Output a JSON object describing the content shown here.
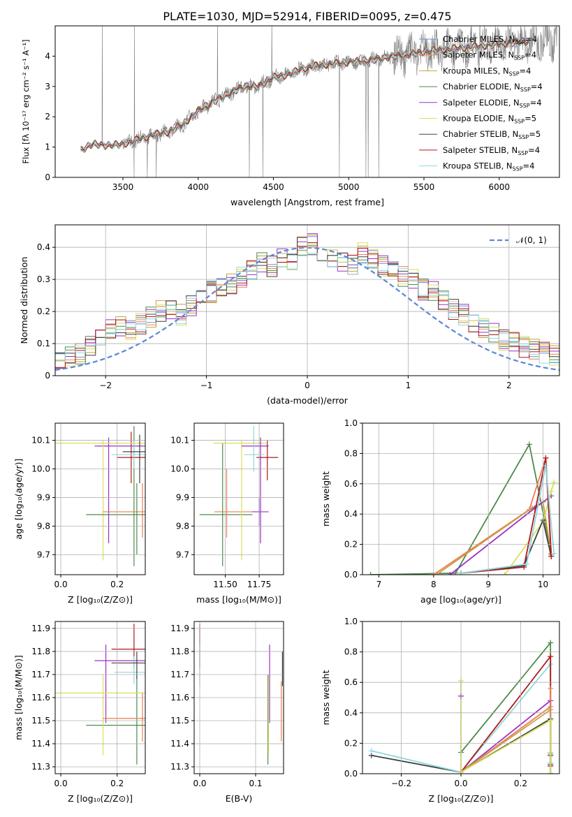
{
  "figure_title": "PLATE=1030, MJD=52914, FIBERID=0095, z=0.475",
  "series_colors": [
    "#6f8fd8",
    "#ee7b52",
    "#c8a040",
    "#4d8a4d",
    "#9b30c8",
    "#d8e05a",
    "#404040",
    "#b01818",
    "#8fd8e0"
  ],
  "chart_data": [
    {
      "id": "spectrum",
      "type": "line",
      "xlabel": "wavelength [Angstrom, rest frame]",
      "ylabel": "Flux [fλ 10⁻¹⁷ erg cm⁻² s⁻¹ A⁻¹]",
      "xlim": [
        3050,
        6400
      ],
      "ylim": [
        0,
        5
      ],
      "xticks": [
        3500,
        4000,
        4500,
        5000,
        5500,
        6000
      ],
      "yticks": [
        0,
        1,
        2,
        3,
        4
      ],
      "legend_position": "top-right",
      "legend": [
        "Chabrier MILES, N_SSP=4",
        "Salpeter MILES, N_SSP=4",
        "Kroupa MILES, N_SSP=4",
        "Chabrier ELODIE, N_SSP=4",
        "Salpeter ELODIE, N_SSP=4",
        "Kroupa ELODIE, N_SSP=5",
        "Chabrier STELIB, N_SSP=5",
        "Salpeter STELIB, N_SSP=4",
        "Kroupa STELIB, N_SSP=4"
      ],
      "model_continuum": {
        "x": [
          3200,
          3220,
          3300,
          3400,
          3500,
          3600,
          3700,
          3800,
          3900,
          4000,
          4100,
          4200,
          4300,
          4400,
          4500,
          4600,
          4700,
          4800,
          4900,
          5000,
          5100,
          5200,
          5300,
          5400,
          5500,
          5600,
          5700,
          5800,
          5900,
          6000,
          6100,
          6200
        ],
        "y": [
          0.0,
          0.9,
          1.1,
          1.05,
          1.1,
          1.25,
          1.4,
          1.5,
          1.75,
          2.2,
          2.5,
          2.75,
          3.0,
          3.0,
          3.3,
          3.4,
          3.6,
          3.7,
          3.75,
          3.8,
          3.85,
          3.9,
          4.0,
          4.05,
          4.15,
          4.2,
          4.25,
          4.3,
          4.35,
          4.4,
          4.45,
          4.5
        ]
      }
    },
    {
      "id": "residual_histogram",
      "type": "line",
      "xlabel": "(data-model)/error",
      "ylabel": "Normed distribution",
      "xlim": [
        -2.5,
        2.5
      ],
      "ylim": [
        0,
        0.47
      ],
      "xticks": [
        -2,
        -1,
        0,
        1,
        2
      ],
      "yticks": [
        0.0,
        0.1,
        0.2,
        0.3,
        0.4
      ],
      "legend_position": "top-right",
      "legend": [
        "𝒩(0, 1)"
      ],
      "reference_curve": "standard normal pdf",
      "histogram_bin_width": 0.1,
      "histogram_base": [
        0.02,
        0.03,
        0.03,
        0.04,
        0.04,
        0.05,
        0.06,
        0.07,
        0.09,
        0.13,
        0.14,
        0.15,
        0.14,
        0.16,
        0.18,
        0.2,
        0.21,
        0.19,
        0.22,
        0.24,
        0.26,
        0.28,
        0.29,
        0.31,
        0.33,
        0.35,
        0.34,
        0.37,
        0.36,
        0.4,
        0.41,
        0.39,
        0.37,
        0.36,
        0.35,
        0.38,
        0.37,
        0.34,
        0.33,
        0.31,
        0.3,
        0.27,
        0.26,
        0.24,
        0.21,
        0.19,
        0.17,
        0.15,
        0.13,
        0.11,
        0.1,
        0.09,
        0.08,
        0.07,
        0.06,
        0.05,
        0.05,
        0.04,
        0.04,
        0.04
      ]
    },
    {
      "id": "age_vs_Z",
      "type": "scatter",
      "xlabel": "Z [log₁₀(Z/Z⊙)]",
      "ylabel": "age  [log₁₀(age/yr)]",
      "xlim": [
        -0.02,
        0.3
      ],
      "ylim": [
        9.63,
        10.16
      ],
      "xticks": [
        0.0,
        0.2
      ],
      "yticks": [
        9.7,
        9.8,
        9.9,
        10.0,
        10.1
      ],
      "errorbars": [
        {
          "x": 0.26,
          "y": 10.06,
          "xlo": 0.22,
          "xhi": 0.3,
          "ylo": 9.66,
          "yhi": 10.15,
          "c": 3
        },
        {
          "x": 0.25,
          "y": 10.04,
          "xlo": 0.2,
          "xhi": 0.3,
          "ylo": 9.95,
          "yhi": 10.13,
          "c": 7
        },
        {
          "x": 0.17,
          "y": 10.08,
          "xlo": 0.12,
          "xhi": 0.3,
          "ylo": 9.74,
          "yhi": 10.11,
          "c": 4
        },
        {
          "x": 0.15,
          "y": 10.09,
          "xlo": -0.02,
          "xhi": 0.3,
          "ylo": 9.68,
          "yhi": 10.1,
          "c": 5
        },
        {
          "x": 0.26,
          "y": 10.05,
          "xlo": 0.18,
          "xhi": 0.3,
          "ylo": 10.0,
          "yhi": 10.1,
          "c": 8
        },
        {
          "x": 0.29,
          "y": 9.85,
          "xlo": 0.15,
          "xhi": 0.3,
          "ylo": 9.76,
          "yhi": 9.95,
          "c": 1
        },
        {
          "x": 0.27,
          "y": 9.84,
          "xlo": 0.09,
          "xhi": 0.3,
          "ylo": 9.7,
          "yhi": 9.95,
          "c": 3
        },
        {
          "x": 0.28,
          "y": 10.06,
          "xlo": 0.22,
          "xhi": 0.3,
          "ylo": 9.95,
          "yhi": 10.12,
          "c": 6
        }
      ]
    },
    {
      "id": "age_vs_mass",
      "type": "scatter",
      "xlabel": "mass [log₁₀(M/M⊙)]",
      "ylabel": "",
      "xlim": [
        11.27,
        11.93
      ],
      "ylim": [
        9.63,
        10.16
      ],
      "xticks": [
        11.5,
        11.75
      ],
      "yticks": [
        9.7,
        9.8,
        9.9,
        10.0,
        10.1
      ],
      "errorbars": [
        {
          "x": 11.48,
          "y": 9.84,
          "xlo": 11.31,
          "xhi": 11.7,
          "ylo": 9.66,
          "yhi": 10.09,
          "c": 3
        },
        {
          "x": 11.51,
          "y": 9.85,
          "xlo": 11.42,
          "xhi": 11.72,
          "ylo": 9.76,
          "yhi": 10.0,
          "c": 1
        },
        {
          "x": 11.62,
          "y": 10.09,
          "xlo": 11.41,
          "xhi": 11.8,
          "ylo": 9.68,
          "yhi": 10.1,
          "c": 5
        },
        {
          "x": 11.76,
          "y": 10.08,
          "xlo": 11.62,
          "xhi": 11.82,
          "ylo": 9.74,
          "yhi": 10.11,
          "c": 4
        },
        {
          "x": 11.81,
          "y": 10.04,
          "xlo": 11.73,
          "xhi": 11.89,
          "ylo": 9.96,
          "yhi": 10.1,
          "c": 7
        },
        {
          "x": 11.71,
          "y": 10.05,
          "xlo": 11.64,
          "xhi": 11.79,
          "ylo": 9.99,
          "yhi": 10.15,
          "c": 8
        },
        {
          "x": 11.75,
          "y": 9.85,
          "xlo": 11.7,
          "xhi": 11.82,
          "ylo": 9.8,
          "yhi": 9.9,
          "c": 4
        }
      ]
    },
    {
      "id": "mass_weight_vs_age",
      "type": "line",
      "xlabel": "age  [log₁₀(age/yr)]",
      "ylabel": "mass weight",
      "xlim": [
        6.7,
        10.3
      ],
      "ylim": [
        0,
        1.0
      ],
      "xticks": [
        7,
        8,
        9,
        10
      ],
      "yticks": [
        0.0,
        0.2,
        0.4,
        0.6,
        0.8,
        1.0
      ],
      "series": [
        {
          "c": 3,
          "x": [
            6.85,
            8.4,
            9.75,
            10.15
          ],
          "y": [
            0.0,
            0.01,
            0.86,
            0.14
          ]
        },
        {
          "c": 1,
          "x": [
            8.0,
            9.75,
            10.05,
            10.15
          ],
          "y": [
            0.0,
            0.43,
            0.77,
            0.14
          ]
        },
        {
          "c": 2,
          "x": [
            8.05,
            9.8,
            10.0,
            10.15
          ],
          "y": [
            0.0,
            0.44,
            0.48,
            0.13
          ]
        },
        {
          "c": 4,
          "x": [
            8.3,
            9.85,
            10.15
          ],
          "y": [
            0.0,
            0.44,
            0.52
          ]
        },
        {
          "c": 5,
          "x": [
            9.3,
            10.0,
            10.15,
            10.2
          ],
          "y": [
            0.0,
            0.35,
            0.55,
            0.61
          ]
        },
        {
          "c": 6,
          "x": [
            8.5,
            9.65,
            10.0,
            10.15
          ],
          "y": [
            0.01,
            0.06,
            0.36,
            0.12
          ]
        },
        {
          "c": 7,
          "x": [
            8.5,
            9.65,
            10.05,
            10.15
          ],
          "y": [
            0.01,
            0.05,
            0.77,
            0.12
          ]
        },
        {
          "c": 8,
          "x": [
            8.5,
            9.7,
            10.05,
            10.2
          ],
          "y": [
            0.01,
            0.07,
            0.72,
            0.14
          ]
        }
      ]
    },
    {
      "id": "mass_vs_Z",
      "type": "scatter",
      "xlabel": "Z [log₁₀(Z/Z⊙)]",
      "ylabel": "mass [log₁₀(M/M⊙)]",
      "xlim": [
        -0.02,
        0.3
      ],
      "ylim": [
        11.27,
        11.93
      ],
      "xticks": [
        0.0,
        0.2
      ],
      "yticks": [
        11.3,
        11.4,
        11.5,
        11.6,
        11.7,
        11.8,
        11.9
      ],
      "errorbars": [
        {
          "x": 0.27,
          "y": 11.48,
          "xlo": 0.09,
          "xhi": 0.3,
          "ylo": 11.31,
          "yhi": 11.7,
          "c": 3
        },
        {
          "x": 0.26,
          "y": 11.81,
          "xlo": 0.18,
          "xhi": 0.3,
          "ylo": 11.73,
          "yhi": 11.92,
          "c": 7
        },
        {
          "x": 0.16,
          "y": 11.76,
          "xlo": 0.12,
          "xhi": 0.3,
          "ylo": 11.49,
          "yhi": 11.83,
          "c": 4
        },
        {
          "x": 0.15,
          "y": 11.62,
          "xlo": -0.02,
          "xhi": 0.3,
          "ylo": 11.35,
          "yhi": 11.7,
          "c": 5
        },
        {
          "x": 0.26,
          "y": 11.71,
          "xlo": 0.19,
          "xhi": 0.3,
          "ylo": 11.66,
          "yhi": 11.78,
          "c": 8
        },
        {
          "x": 0.29,
          "y": 11.51,
          "xlo": 0.15,
          "xhi": 0.3,
          "ylo": 11.41,
          "yhi": 11.62,
          "c": 1
        },
        {
          "x": 0.27,
          "y": 11.75,
          "xlo": 0.18,
          "xhi": 0.3,
          "ylo": 11.68,
          "yhi": 11.8,
          "c": 6
        }
      ]
    },
    {
      "id": "mass_vs_ebv",
      "type": "scatter",
      "xlabel": "E(B-V)",
      "ylabel": "",
      "xlim": [
        -0.01,
        0.15
      ],
      "ylim": [
        11.27,
        11.93
      ],
      "xticks": [
        0.0,
        0.1
      ],
      "yticks": [
        11.3,
        11.4,
        11.5,
        11.6,
        11.7,
        11.8,
        11.9
      ],
      "errorbars": [
        {
          "x": 0.0,
          "y": 11.81,
          "ylo": 11.73,
          "yhi": 11.92,
          "c": 7
        },
        {
          "x": 0.0,
          "y": 11.71,
          "ylo": 11.65,
          "yhi": 11.83,
          "c": 8
        },
        {
          "x": 0.122,
          "y": 11.48,
          "ylo": 11.31,
          "yhi": 11.7,
          "c": 3
        },
        {
          "x": 0.123,
          "y": 11.62,
          "ylo": 11.35,
          "yhi": 11.7,
          "c": 5
        },
        {
          "x": 0.125,
          "y": 11.76,
          "ylo": 11.49,
          "yhi": 11.83,
          "c": 4
        },
        {
          "x": 0.146,
          "y": 11.51,
          "ylo": 11.41,
          "yhi": 11.67,
          "c": 1
        },
        {
          "x": 0.148,
          "y": 11.75,
          "ylo": 11.65,
          "yhi": 11.8,
          "c": 6
        }
      ]
    },
    {
      "id": "mass_weight_vs_Z",
      "type": "line",
      "xlabel": "Z [log₁₀(Z/Z⊙)]",
      "ylabel": "mass weight",
      "xlim": [
        -0.33,
        0.33
      ],
      "ylim": [
        0,
        1.0
      ],
      "xticks": [
        -0.2,
        0.0,
        0.2
      ],
      "yticks": [
        0.0,
        0.2,
        0.4,
        0.6,
        0.8,
        1.0
      ],
      "series": [
        {
          "c": 6,
          "x": [
            -0.3,
            0.0,
            0.3,
            0.3,
            0.3
          ],
          "y": [
            0.12,
            0.01,
            0.36,
            0.12,
            0.06
          ]
        },
        {
          "c": 8,
          "x": [
            -0.3,
            0.0,
            0.3,
            0.3,
            0.3
          ],
          "y": [
            0.15,
            0.01,
            0.72,
            0.14,
            0.07
          ]
        },
        {
          "c": 3,
          "x": [
            0.0,
            0.3,
            0.3
          ],
          "y": [
            0.14,
            0.86,
            0.0
          ]
        },
        {
          "c": 7,
          "x": [
            0.0,
            0.3,
            0.3
          ],
          "y": [
            0.01,
            0.77,
            0.05
          ]
        },
        {
          "c": 4,
          "x": [
            0.0,
            0.3,
            0.3
          ],
          "y": [
            0.01,
            0.48,
            0.0
          ]
        },
        {
          "c": 1,
          "x": [
            0.0,
            0.3,
            0.3
          ],
          "y": [
            0.01,
            0.44,
            0.56
          ]
        },
        {
          "c": 2,
          "x": [
            0.0,
            0.3,
            0.3
          ],
          "y": [
            0.01,
            0.42,
            0.13
          ]
        },
        {
          "c": 5,
          "x": [
            0.0,
            0.0,
            0.3,
            0.3
          ],
          "y": [
            0.61,
            0.01,
            0.35,
            0.0
          ]
        },
        {
          "c": 4,
          "x": [
            0.0,
            0.0
          ],
          "y": [
            0.51,
            0.51
          ]
        }
      ]
    }
  ]
}
